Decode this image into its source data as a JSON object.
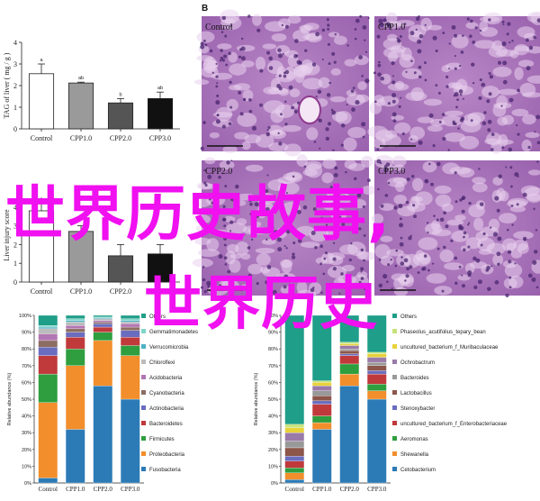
{
  "panel_label_b": "B",
  "watermark": {
    "line1": "世界历史故事,",
    "line2": "世界历史"
  },
  "colors": {
    "Others": "#1f9e89",
    "Gemmatimonadetes": "#7fd6c8",
    "Verrucomicrobia": "#4fb0c6",
    "Chloroflexi": "#bcbcbc",
    "Acidobacteria": "#b276b2",
    "Cyanobacteria": "#8c6d62",
    "Actinobacteria": "#6a6dbf",
    "Bacteroidetes": "#c0393b",
    "Firmicutes": "#2e9e3e",
    "Proteobacteria": "#f28e2b",
    "Fusobacteria": "#2c7bb6",
    "Phaseolus_acutifolius_tepary_bean": "#c7e37a",
    "uncultured_bacterium_f_Muribaculaceae": "#e8d23a",
    "Ochrobactrum": "#9a7aa8",
    "Lactobacillus": "#8c564b",
    "Stenoxybacter": "#6a6dbf",
    "uncultured_bacterium_f_Enterobacteriaceae": "#c0393b",
    "Aeromonas": "#2e9e3e",
    "Shewanella": "#f28e2b",
    "Cetobacterium": "#2c7bb6"
  },
  "chart_data": [
    {
      "type": "bar",
      "panel": "tag",
      "categories": [
        "Control",
        "CPP1.0",
        "CPP2.0",
        "CPP3.0"
      ],
      "values": [
        2.55,
        2.12,
        1.2,
        1.4
      ],
      "errors": [
        0.45,
        0.04,
        0.2,
        0.3
      ],
      "letters": [
        "a",
        "ab",
        "b",
        "ab"
      ],
      "bar_colors": [
        "#ffffff",
        "#9a9a9a",
        "#555555",
        "#111111"
      ],
      "ylabel": "TAG of liver ( mg / g )",
      "ylim": [
        0,
        4
      ],
      "yticks": [
        0,
        1,
        2,
        3,
        4
      ]
    },
    {
      "type": "bar",
      "panel": "injury",
      "categories": [
        "Control",
        "CPP1.0",
        "CPP2.0",
        "CPP3.0"
      ],
      "values": [
        3.8,
        2.7,
        1.4,
        1.5
      ],
      "errors": [
        0.4,
        0.3,
        0.6,
        0.5
      ],
      "letters": [
        "a",
        "",
        "",
        ""
      ],
      "bar_colors": [
        "#ffffff",
        "#9a9a9a",
        "#555555",
        "#111111"
      ],
      "ylabel": "Liver injury score",
      "ylim": [
        0,
        5
      ],
      "yticks": [
        0,
        1,
        2,
        3,
        4
      ]
    },
    {
      "type": "bar",
      "stacked": true,
      "panel": "phylum",
      "categories": [
        "Control",
        "CPP1.0",
        "CPP2.0",
        "CPP3.0"
      ],
      "ylabel": "Relative abundance (%)",
      "ylim": [
        0,
        100
      ],
      "yticks": [
        "0%",
        "10%",
        "20%",
        "30%",
        "40%",
        "50%",
        "60%",
        "70%",
        "80%",
        "90%",
        "100%"
      ],
      "legend": [
        "Others",
        "Gemmatimonadetes",
        "Verrucomicrobia",
        "Chloroflexi",
        "Acidobacteria",
        "Cyanobacteria",
        "Actinobacteria",
        "Bacteroidetes",
        "Firmicutes",
        "Proteobacteria",
        "Fusobacteria"
      ],
      "series": [
        {
          "name": "Fusobacteria",
          "values": [
            3,
            32,
            58,
            50
          ]
        },
        {
          "name": "Proteobacteria",
          "values": [
            45,
            38,
            27,
            26
          ]
        },
        {
          "name": "Firmicutes",
          "values": [
            17,
            10,
            5,
            6
          ]
        },
        {
          "name": "Bacteroidetes",
          "values": [
            11,
            7,
            3,
            5
          ]
        },
        {
          "name": "Actinobacteria",
          "values": [
            5,
            3,
            2,
            4
          ]
        },
        {
          "name": "Cyanobacteria",
          "values": [
            4,
            2,
            1,
            2
          ]
        },
        {
          "name": "Acidobacteria",
          "values": [
            4,
            2,
            1,
            2
          ]
        },
        {
          "name": "Chloroflexi",
          "values": [
            3,
            2,
            1,
            1
          ]
        },
        {
          "name": "Verrucomicrobia",
          "values": [
            1,
            1,
            0.5,
            1
          ]
        },
        {
          "name": "Gemmatimonadetes",
          "values": [
            1,
            1,
            0.5,
            1
          ]
        },
        {
          "name": "Others",
          "values": [
            6,
            2,
            1,
            2
          ]
        }
      ]
    },
    {
      "type": "bar",
      "stacked": true,
      "panel": "genus",
      "categories": [
        "Control",
        "CPP1.0",
        "CPP2.0",
        "CPP3.0"
      ],
      "ylabel": "Relative abundance (%)",
      "ylim": [
        0,
        100
      ],
      "yticks": [
        "0%",
        "10%",
        "20%",
        "30%",
        "40%",
        "50%",
        "60%",
        "70%",
        "80%",
        "90%",
        "100%"
      ],
      "legend": [
        "Others",
        "Phaseolus_acutifolius_tepary_bean",
        "uncultured_bacterium_f_Muribaculaceae",
        "Ochrobactrum",
        "Bacteroides",
        "Lactobacillus",
        "Stenoxybacter",
        "uncultured_bacterium_f_Enterobacteriaceae",
        "Aeromonas",
        "Shewanella",
        "Cetobacterium"
      ],
      "series": [
        {
          "name": "Cetobacterium",
          "values": [
            2,
            32,
            58,
            50
          ]
        },
        {
          "name": "Shewanella",
          "values": [
            4,
            4,
            7,
            5
          ]
        },
        {
          "name": "Aeromonas",
          "values": [
            3,
            4,
            6,
            4
          ]
        },
        {
          "name": "uncultured_bacterium_f_Enterobacteriaceae",
          "values": [
            4,
            7,
            5,
            6
          ]
        },
        {
          "name": "Stenoxybacter",
          "values": [
            3,
            2,
            1,
            2
          ]
        },
        {
          "name": "Lactobacillus",
          "values": [
            5,
            3,
            2,
            3
          ]
        },
        {
          "name": "Bacteroides",
          "values": [
            4,
            3,
            1,
            2
          ]
        },
        {
          "name": "Ochrobactrum",
          "values": [
            5,
            3,
            2,
            3
          ]
        },
        {
          "name": "uncultured_bacterium_f_Muribaculaceae",
          "values": [
            3,
            2,
            1,
            2
          ]
        },
        {
          "name": "Phaseolus_acutifolius_tepary_bean",
          "values": [
            2,
            1,
            1,
            1
          ]
        },
        {
          "name": "Others",
          "values": [
            65,
            39,
            16,
            22
          ]
        }
      ]
    }
  ],
  "histology": [
    {
      "label": "Control"
    },
    {
      "label": "CPP1.0"
    },
    {
      "label": "CPP2.0"
    },
    {
      "label": "CPP3.0"
    }
  ]
}
